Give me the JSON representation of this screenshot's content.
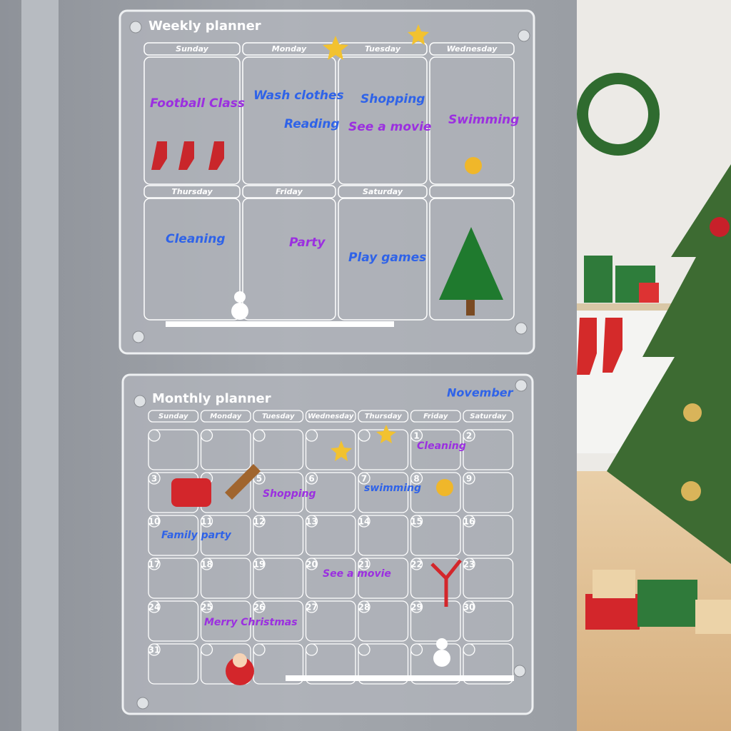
{
  "weekly": {
    "title": "Weekly planner",
    "days": [
      "Sunday",
      "Monday",
      "Tuesday",
      "Wednesday",
      "Thursday",
      "Friday",
      "Saturday"
    ],
    "entries": [
      "Football Class",
      "Wash clothes",
      "Reading",
      "Shopping",
      "See a movie",
      "Swimming",
      "Cleaning",
      "Party",
      "Play games"
    ]
  },
  "monthly": {
    "title": "Monthly planner",
    "month": "November",
    "weekdays": [
      "Sunday",
      "Monday",
      "Tuesday",
      "Wednesday",
      "Thursday",
      "Friday",
      "Saturday"
    ],
    "rows": [
      [
        null,
        null,
        null,
        null,
        null,
        "1",
        "2"
      ],
      [
        "3",
        null,
        "5",
        "6",
        "7",
        "8",
        "9"
      ],
      [
        "10",
        "11",
        "12",
        "13",
        "14",
        "15",
        "16"
      ],
      [
        "17",
        "18",
        "19",
        "20",
        "21",
        "22",
        "23"
      ],
      [
        "24",
        "25",
        "26",
        "27",
        "28",
        "29",
        "30"
      ],
      [
        "31",
        null,
        null,
        null,
        null,
        null,
        null
      ]
    ],
    "notes": [
      "Cleaning",
      "Shopping",
      "swimming",
      "Family party",
      "See a movie",
      "Merry Christmas"
    ]
  }
}
